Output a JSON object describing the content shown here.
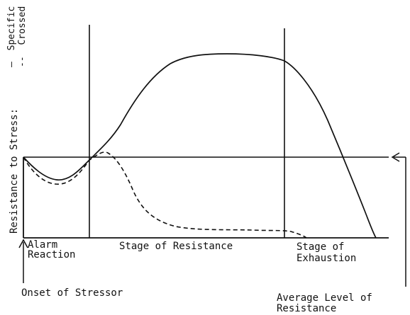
{
  "colors": {
    "ink": "#111111",
    "background": "#ffffff"
  },
  "legend": {
    "specific_symbol": "—",
    "specific_label": "Specific",
    "crossed_symbol": "--",
    "crossed_label": "Crossed"
  },
  "y_axis": {
    "label": "Resistance to Stress:"
  },
  "stages": {
    "alarm_line1": "Alarm",
    "alarm_line2": "Reaction",
    "resistance": "Stage of Resistance",
    "exhaustion_line1": "Stage of",
    "exhaustion_line2": "Exhaustion"
  },
  "annotations": {
    "onset": "Onset of Stressor",
    "average_line1": "Average Level of",
    "average_line2": "Resistance"
  }
}
